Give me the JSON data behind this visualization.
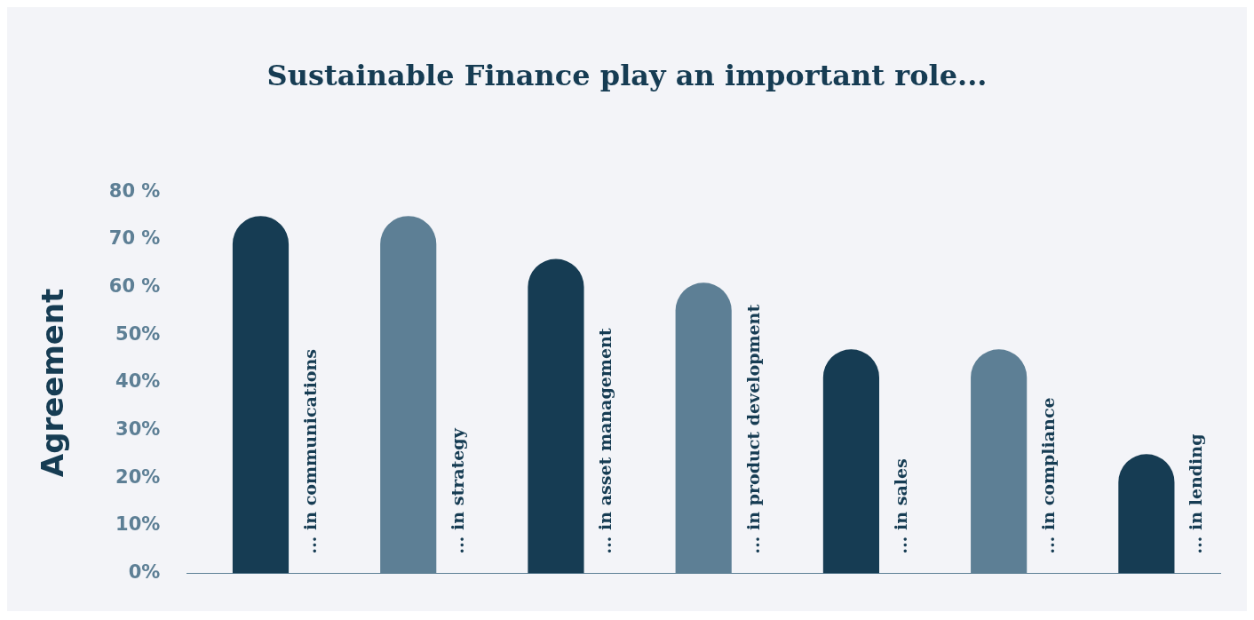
{
  "chart_data": {
    "type": "bar",
    "title": "Sustainable Finance play an important role...",
    "ylabel": "Agreement",
    "categories": [
      "... in communications",
      "... in strategy",
      "... in asset management",
      "... in product development",
      "... in sales",
      "... in compliance",
      "... in lending"
    ],
    "values": [
      75,
      75,
      66,
      61,
      47,
      47,
      25
    ],
    "colors": [
      "#163c53",
      "#5d7f95",
      "#163c53",
      "#5d7f95",
      "#163c53",
      "#5d7f95",
      "#163c53"
    ],
    "ylim": [
      0,
      80
    ],
    "yticks": [
      {
        "value": 0,
        "label": "0%"
      },
      {
        "value": 10,
        "label": "10%"
      },
      {
        "value": 20,
        "label": "20%"
      },
      {
        "value": 30,
        "label": "30%"
      },
      {
        "value": 40,
        "label": "40%"
      },
      {
        "value": 50,
        "label": "50%"
      },
      {
        "value": 60,
        "label": "60 %"
      },
      {
        "value": 70,
        "label": "70 %"
      },
      {
        "value": 80,
        "label": "80 %"
      }
    ],
    "grid": false,
    "legend": false,
    "tick_labels": "y"
  }
}
